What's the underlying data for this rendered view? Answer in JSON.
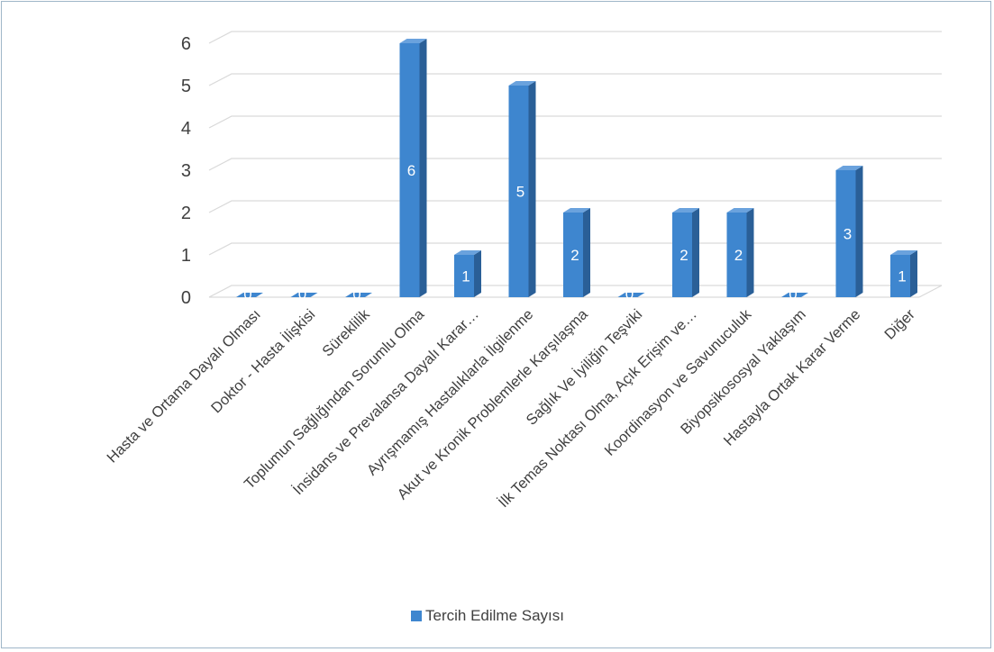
{
  "chart_data": {
    "type": "bar",
    "style": "3d-column",
    "categories": [
      "Hasta ve Ortama Dayalı Olması",
      "Doktor - Hasta İlişkisi",
      "Süreklilik",
      "Toplumun Sağlığından Sorumlu Olma",
      "İnsidans ve Prevalansa Dayalı Karar…",
      "Ayrışmamış Hastalıklarla İlgilenme",
      "Akut ve Kronik Problemlerle Karşılaşma",
      "Sağlık Ve İyiliğin Teşviki",
      "İlk Temas Noktası Olma, Açık Erişim ve…",
      "Koordinasyon ve Savunuculuk",
      "Biyopsikososyal Yaklaşım",
      "Hastayla Ortak Karar Verme",
      "Diğer"
    ],
    "series": [
      {
        "name": "Tercih Edilme Sayısı",
        "values": [
          0,
          0,
          0,
          6,
          1,
          5,
          2,
          0,
          2,
          2,
          0,
          3,
          1
        ]
      }
    ],
    "data_labels": [
      "0",
      "0",
      "0",
      "6",
      "1",
      "5",
      "2",
      "0",
      "2",
      "2",
      "0",
      "3",
      "1"
    ],
    "ylim": [
      0,
      6
    ],
    "yticks": [
      "0",
      "1",
      "2",
      "3",
      "4",
      "5",
      "6"
    ],
    "grid": true,
    "legend_position": "bottom",
    "colors": {
      "bar_front": "#3e86cf",
      "bar_side": "#2a5f97",
      "bar_top": "#6aa2dd",
      "grid": "#d9d9d9",
      "text": "#404040",
      "frame": "#9fb6c8"
    }
  }
}
